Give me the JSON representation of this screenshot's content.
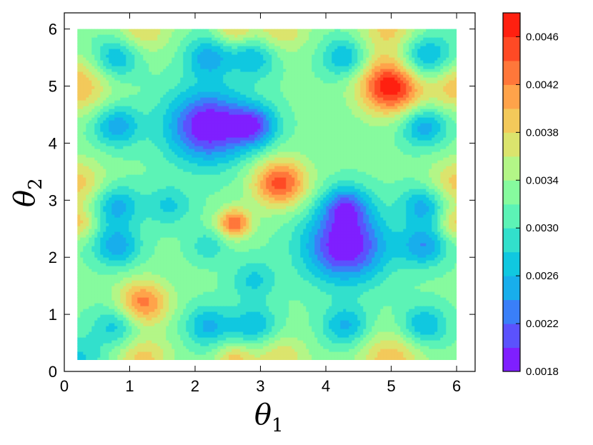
{
  "chart_data": {
    "type": "heatmap",
    "subtype": "filled-contour",
    "xlabel": "θ",
    "xlabel_subscript": "1",
    "ylabel": "θ",
    "ylabel_subscript": "2",
    "xlim": [
      0,
      6.283
    ],
    "ylim": [
      0,
      6.283
    ],
    "data_extent": {
      "x": [
        0.2,
        6.0
      ],
      "y": [
        0.2,
        6.0
      ]
    },
    "x_ticks": [
      "0",
      "1",
      "2",
      "3",
      "4",
      "5",
      "6"
    ],
    "y_ticks": [
      "0",
      "1",
      "2",
      "3",
      "4",
      "5",
      "6"
    ],
    "colorbar": {
      "min": 0.0018,
      "max": 0.0048,
      "levels": 15,
      "tick_values": [
        0.0018,
        0.0022,
        0.0026,
        0.003,
        0.0034,
        0.0038,
        0.0042,
        0.0046
      ],
      "tick_labels": [
        "0.0018",
        "0.0022",
        "0.0026",
        "0.0030",
        "0.0034",
        "0.0038",
        "0.0042",
        "0.0046"
      ],
      "colors": [
        "#7f1fff",
        "#5b52fd",
        "#3a7ff8",
        "#18aeec",
        "#10c8e0",
        "#32e0cc",
        "#5cf3b6",
        "#86fb9e",
        "#b3f687",
        "#dbe46d",
        "#f3c95a",
        "#ffa34a",
        "#ff773a",
        "#ff4a25",
        "#ff2010"
      ],
      "colormap": "rainbow"
    },
    "field": {
      "description_values": "value = base + sum of peaks/dips at (x, y) with amplitude a and spread s",
      "base": 0.00325,
      "features": [
        {
          "x": 5.0,
          "y": 5.0,
          "a": 0.00155,
          "s": 0.35
        },
        {
          "x": 3.3,
          "y": 3.3,
          "a": 0.00125,
          "s": 0.3
        },
        {
          "x": 2.6,
          "y": 2.6,
          "a": 0.00115,
          "s": 0.18
        },
        {
          "x": 1.2,
          "y": 1.2,
          "a": 0.00105,
          "s": 0.28
        },
        {
          "x": 0.2,
          "y": 5.0,
          "a": 0.00075,
          "s": 0.35
        },
        {
          "x": 6.0,
          "y": 5.0,
          "a": 0.0007,
          "s": 0.3
        },
        {
          "x": 0.2,
          "y": 3.3,
          "a": 0.00065,
          "s": 0.3
        },
        {
          "x": 6.0,
          "y": 3.3,
          "a": 0.00065,
          "s": 0.3
        },
        {
          "x": 0.2,
          "y": 2.6,
          "a": 0.0006,
          "s": 0.2
        },
        {
          "x": 6.0,
          "y": 2.6,
          "a": 0.0006,
          "s": 0.2
        },
        {
          "x": 1.2,
          "y": 6.0,
          "a": 0.00055,
          "s": 0.3
        },
        {
          "x": 2.6,
          "y": 6.0,
          "a": 0.0006,
          "s": 0.2
        },
        {
          "x": 3.3,
          "y": 6.0,
          "a": 0.00055,
          "s": 0.3
        },
        {
          "x": 5.0,
          "y": 6.0,
          "a": 0.00065,
          "s": 0.35
        },
        {
          "x": 1.2,
          "y": 0.2,
          "a": 0.00065,
          "s": 0.3
        },
        {
          "x": 2.6,
          "y": 0.2,
          "a": 0.00065,
          "s": 0.2
        },
        {
          "x": 3.3,
          "y": 0.2,
          "a": 0.00055,
          "s": 0.3
        },
        {
          "x": 5.0,
          "y": 0.2,
          "a": 0.0007,
          "s": 0.35
        },
        {
          "x": 2.2,
          "y": 4.3,
          "a": -0.0015,
          "s": 0.45
        },
        {
          "x": 4.3,
          "y": 2.2,
          "a": -0.0015,
          "s": 0.45
        },
        {
          "x": 2.9,
          "y": 4.3,
          "a": -0.001,
          "s": 0.25
        },
        {
          "x": 4.3,
          "y": 2.9,
          "a": -0.0009,
          "s": 0.25
        },
        {
          "x": 0.8,
          "y": 4.3,
          "a": -0.0008,
          "s": 0.25
        },
        {
          "x": 5.5,
          "y": 4.3,
          "a": -0.0008,
          "s": 0.25
        },
        {
          "x": 0.8,
          "y": 2.9,
          "a": -0.00075,
          "s": 0.25
        },
        {
          "x": 0.8,
          "y": 2.2,
          "a": -0.0008,
          "s": 0.25
        },
        {
          "x": 5.5,
          "y": 2.2,
          "a": -0.0008,
          "s": 0.25
        },
        {
          "x": 5.5,
          "y": 2.9,
          "a": -0.00075,
          "s": 0.25
        },
        {
          "x": 2.2,
          "y": 5.5,
          "a": -0.00075,
          "s": 0.25
        },
        {
          "x": 2.9,
          "y": 5.5,
          "a": -0.00065,
          "s": 0.25
        },
        {
          "x": 4.3,
          "y": 5.5,
          "a": -0.0007,
          "s": 0.25
        },
        {
          "x": 5.5,
          "y": 5.5,
          "a": -0.0009,
          "s": 0.3
        },
        {
          "x": 2.2,
          "y": 0.8,
          "a": -0.0007,
          "s": 0.25
        },
        {
          "x": 2.9,
          "y": 0.8,
          "a": -0.00065,
          "s": 0.25
        },
        {
          "x": 4.3,
          "y": 0.8,
          "a": -0.0007,
          "s": 0.25
        },
        {
          "x": 5.5,
          "y": 0.8,
          "a": -0.0007,
          "s": 0.25
        },
        {
          "x": 0.8,
          "y": 5.5,
          "a": -0.0007,
          "s": 0.25
        },
        {
          "x": 0.8,
          "y": 0.8,
          "a": -0.0006,
          "s": 0.25
        },
        {
          "x": 1.6,
          "y": 2.9,
          "a": -0.0005,
          "s": 0.25
        },
        {
          "x": 2.9,
          "y": 1.6,
          "a": -0.0005,
          "s": 0.25
        },
        {
          "x": 2.2,
          "y": 2.2,
          "a": -0.0004,
          "s": 0.2
        },
        {
          "x": 0.2,
          "y": 0.2,
          "a": -0.0005,
          "s": 0.3
        }
      ]
    }
  }
}
